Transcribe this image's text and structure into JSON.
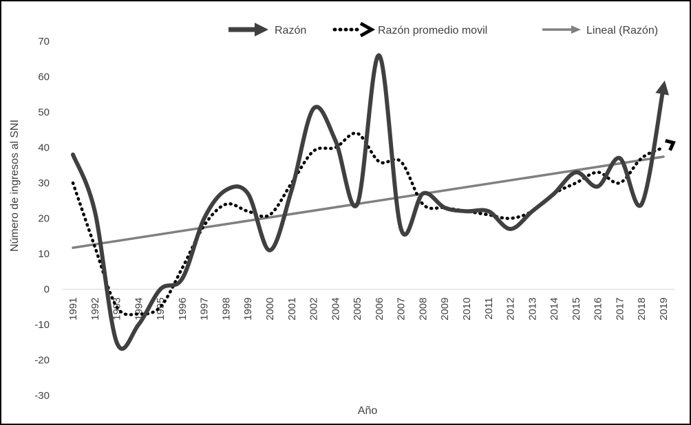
{
  "chart_data": {
    "type": "line",
    "title": "",
    "xlabel": "Año",
    "ylabel": "Número de ingresos al SNI",
    "ylim": [
      -30,
      70
    ],
    "yticks": [
      -30,
      -20,
      -10,
      0,
      10,
      20,
      30,
      40,
      50,
      60,
      70
    ],
    "categories": [
      "1991",
      "1992",
      "1993",
      "1994",
      "1995",
      "1996",
      "1997",
      "1998",
      "1999",
      "2000",
      "2001",
      "2002",
      "2004",
      "2005",
      "2006",
      "2007",
      "2008",
      "2009",
      "2010",
      "2011",
      "2012",
      "2013",
      "2014",
      "2015",
      "2016",
      "2017",
      "2018",
      "2019"
    ],
    "grid": false,
    "legend_position": "top-right",
    "series": [
      {
        "name": "Razón",
        "style": "solid",
        "color": "#404040",
        "values": [
          38,
          22,
          -15,
          -10,
          0,
          3,
          20,
          28,
          27,
          11,
          28,
          51,
          42,
          24,
          66,
          17,
          27,
          23,
          22,
          22,
          17,
          22,
          27,
          33,
          29,
          37,
          24,
          57
        ]
      },
      {
        "name": "Razón promedio movil",
        "style": "dotted",
        "color": "#000000",
        "values": [
          30,
          12,
          -5,
          -7,
          -5,
          6,
          18,
          24,
          22,
          21,
          30,
          39,
          40,
          44,
          36,
          36,
          24,
          23,
          22,
          21,
          20,
          22,
          27,
          30,
          33,
          30,
          37,
          40
        ]
      },
      {
        "name": "Lineal (Razón)",
        "style": "solid-thin",
        "color": "#808080",
        "values": [
          11.7,
          12.7,
          13.7,
          14.6,
          15.6,
          16.5,
          17.5,
          18.4,
          19.4,
          20.3,
          21.3,
          22.2,
          23.2,
          24.1,
          25.1,
          26.0,
          27.0,
          27.9,
          28.9,
          29.8,
          30.8,
          31.7,
          32.7,
          33.6,
          34.6,
          35.5,
          36.5,
          37.4
        ]
      }
    ]
  }
}
